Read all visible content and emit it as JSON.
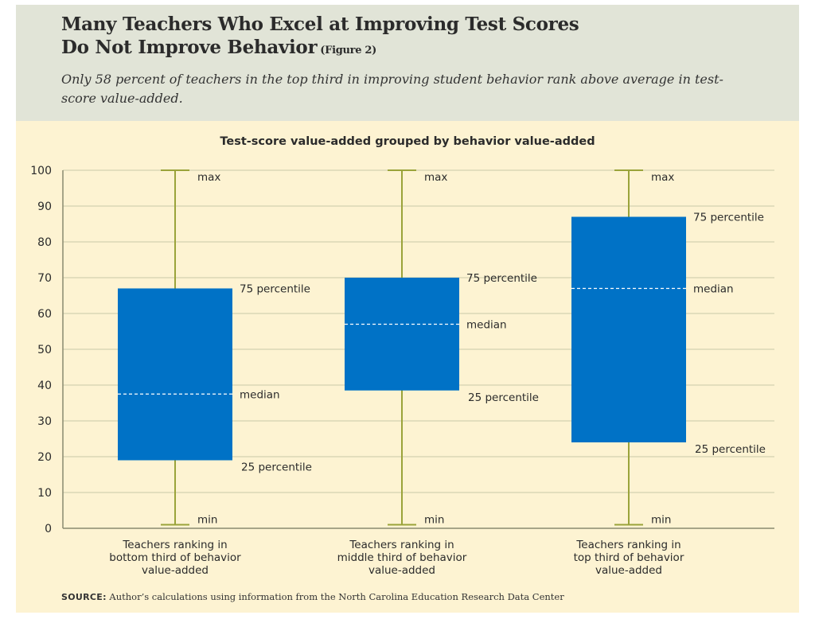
{
  "header": {
    "title_line1": "Many Teachers Who Excel at Improving Test Scores",
    "title_line2": "Do Not Improve Behavior",
    "figure_label": "(Figure 2)",
    "subtitle": "Only 58 percent of teachers in the top third in improving student behavior rank above average in test-score value-added."
  },
  "source": {
    "label": "SOURCE:",
    "text": "Author’s calculations using information from the North Carolina Education Research Data Center"
  },
  "colors": {
    "box": "#0072c6",
    "whisker": "#9aa33a",
    "grid": "#c9c8a8",
    "median_line": "#ffffff",
    "background": "#fdf3d2",
    "header_background": "#e1e4d7"
  },
  "chart_data": {
    "type": "boxplot",
    "title": "Test-score value-added grouped by behavior value-added",
    "xlabel": "",
    "ylabel": "",
    "ylim": [
      0,
      100
    ],
    "yticks": [
      0,
      10,
      20,
      30,
      40,
      50,
      60,
      70,
      80,
      90,
      100
    ],
    "grid": true,
    "categories": [
      [
        "Teachers ranking in",
        "bottom third of behavior",
        "value-added"
      ],
      [
        "Teachers ranking in",
        "middle third of behavior",
        "value-added"
      ],
      [
        "Teachers ranking in",
        "top third of behavior",
        "value-added"
      ]
    ],
    "boxes": [
      {
        "min": 1,
        "q1": 19,
        "median": 37.5,
        "q3": 67,
        "max": 100
      },
      {
        "min": 1,
        "q1": 38.5,
        "median": 57,
        "q3": 70,
        "max": 100
      },
      {
        "min": 1,
        "q1": 24,
        "median": 67,
        "q3": 87,
        "max": 100
      }
    ],
    "annotation_labels": {
      "max": "max",
      "q3": "75 percentile",
      "median": "median",
      "q1": "25 percentile",
      "min": "min"
    }
  }
}
